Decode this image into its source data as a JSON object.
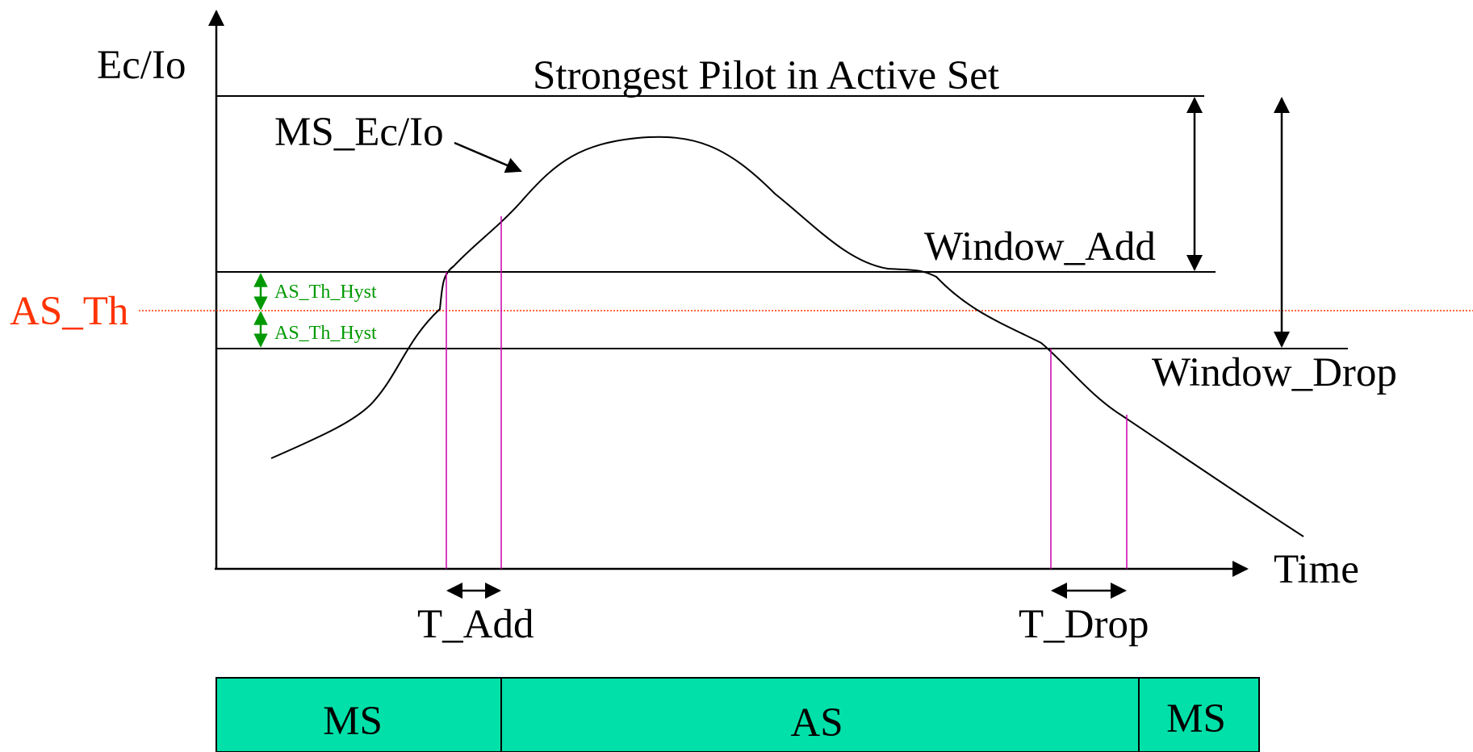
{
  "axes": {
    "y_label": "Ec/Io",
    "x_label": "Time"
  },
  "labels": {
    "strongest_pilot": "Strongest Pilot in Active Set",
    "ms_ecio": "MS_Ec/Io",
    "window_add": "Window_Add",
    "window_drop": "Window_Drop",
    "as_th": "AS_Th",
    "as_th_hyst_upper": "AS_Th_Hyst",
    "as_th_hyst_lower": "AS_Th_Hyst",
    "t_add": "T_Add",
    "t_drop": "T_Drop"
  },
  "state_bar": {
    "segments": [
      {
        "label": "MS"
      },
      {
        "label": "AS"
      },
      {
        "label": "MS"
      }
    ]
  },
  "colors": {
    "threshold": "#ff3300",
    "hysteresis": "#009900",
    "timer_lines": "#cc00aa",
    "state_fill": "#00e0a8",
    "line": "#000000"
  }
}
